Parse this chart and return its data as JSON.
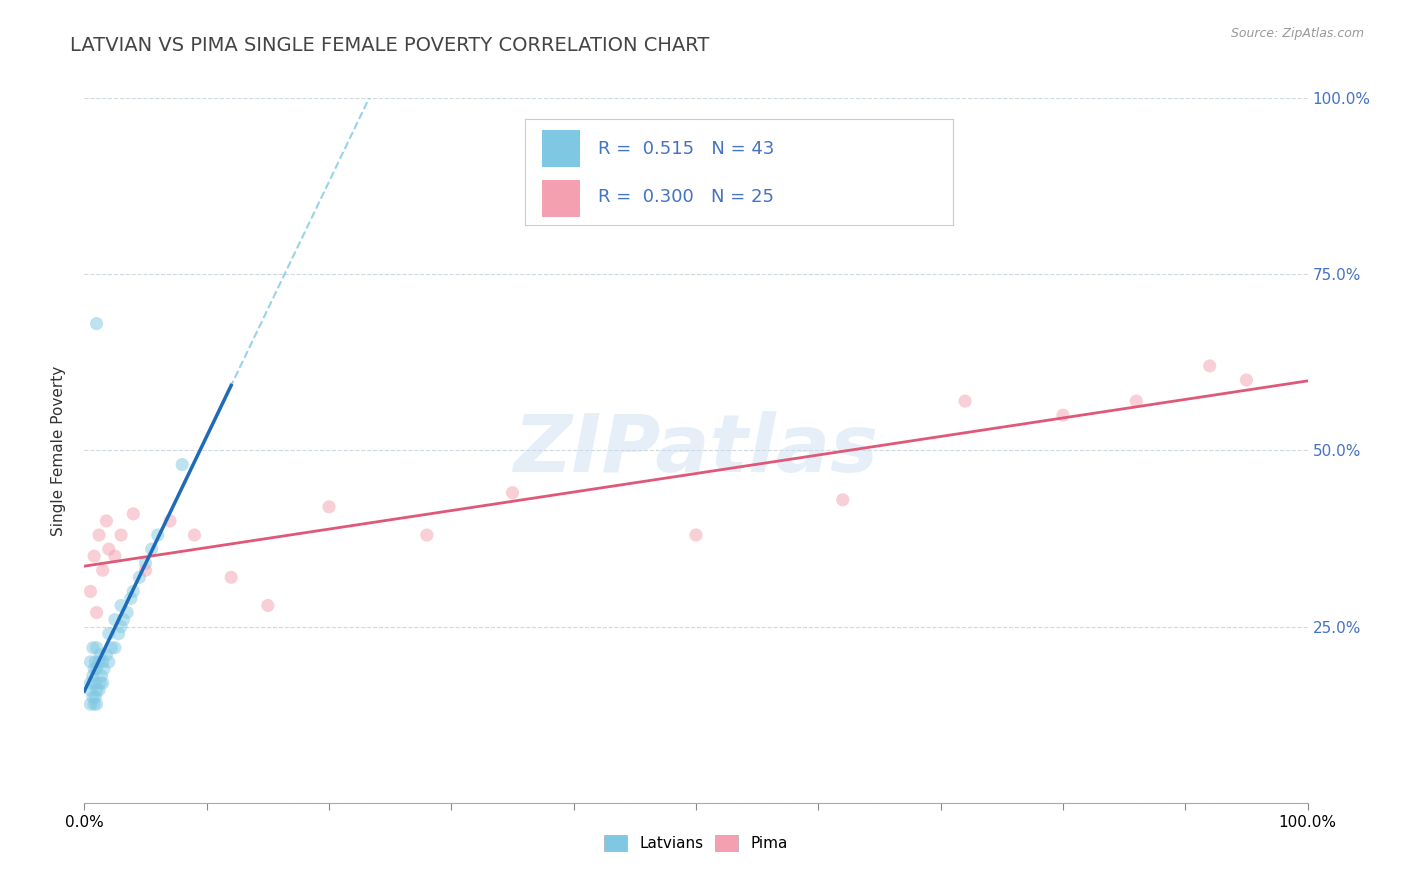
{
  "title": "LATVIAN VS PIMA SINGLE FEMALE POVERTY CORRELATION CHART",
  "source": "Source: ZipAtlas.com",
  "ylabel": "Single Female Poverty",
  "legend_labels": [
    "Latvians",
    "Pima"
  ],
  "r_latvian": 0.515,
  "n_latvian": 43,
  "r_pima": 0.3,
  "n_pima": 25,
  "latvian_color": "#7ec8e3",
  "pima_color": "#f4a0b0",
  "latvian_line_color": "#1e6bb8",
  "pima_line_color": "#e05878",
  "latvian_dash_color": "#7ec8e3",
  "watermark": "ZIPatlas",
  "xlim": [
    0.0,
    1.0
  ],
  "ylim": [
    0.0,
    1.0
  ],
  "latvian_x": [
    0.005,
    0.005,
    0.005,
    0.005,
    0.007,
    0.007,
    0.007,
    0.008,
    0.008,
    0.009,
    0.009,
    0.009,
    0.01,
    0.01,
    0.01,
    0.01,
    0.012,
    0.012,
    0.013,
    0.013,
    0.014,
    0.015,
    0.015,
    0.016,
    0.018,
    0.02,
    0.02,
    0.022,
    0.025,
    0.025,
    0.028,
    0.03,
    0.03,
    0.032,
    0.035,
    0.038,
    0.04,
    0.045,
    0.05,
    0.055,
    0.06,
    0.08,
    0.01
  ],
  "latvian_y": [
    0.14,
    0.16,
    0.17,
    0.2,
    0.15,
    0.18,
    0.22,
    0.14,
    0.19,
    0.15,
    0.17,
    0.2,
    0.14,
    0.16,
    0.19,
    0.22,
    0.16,
    0.2,
    0.17,
    0.21,
    0.18,
    0.17,
    0.2,
    0.19,
    0.21,
    0.2,
    0.24,
    0.22,
    0.22,
    0.26,
    0.24,
    0.25,
    0.28,
    0.26,
    0.27,
    0.29,
    0.3,
    0.32,
    0.34,
    0.36,
    0.38,
    0.48,
    0.68
  ],
  "pima_x": [
    0.005,
    0.008,
    0.01,
    0.012,
    0.015,
    0.018,
    0.02,
    0.025,
    0.03,
    0.04,
    0.05,
    0.07,
    0.09,
    0.12,
    0.15,
    0.2,
    0.28,
    0.35,
    0.5,
    0.62,
    0.72,
    0.8,
    0.86,
    0.92,
    0.95
  ],
  "pima_y": [
    0.3,
    0.35,
    0.27,
    0.38,
    0.33,
    0.4,
    0.36,
    0.35,
    0.38,
    0.41,
    0.33,
    0.4,
    0.38,
    0.32,
    0.28,
    0.42,
    0.38,
    0.44,
    0.38,
    0.43,
    0.57,
    0.55,
    0.57,
    0.62,
    0.6
  ],
  "background_color": "#ffffff",
  "grid_color": "#d0d8e0",
  "title_fontsize": 14,
  "axis_label_fontsize": 11,
  "tick_fontsize": 11,
  "marker_size": 90,
  "marker_alpha": 0.5,
  "right_tick_color": "#4472c4",
  "xtick_positions": [
    0.0,
    0.1,
    0.2,
    0.3,
    0.4,
    0.5,
    0.6,
    0.7,
    0.8,
    0.9,
    1.0
  ],
  "ytick_positions": [
    0.0,
    0.25,
    0.5,
    0.75,
    1.0
  ],
  "right_ytick_labels": [
    "",
    "25.0%",
    "50.0%",
    "75.0%",
    "100.0%"
  ]
}
